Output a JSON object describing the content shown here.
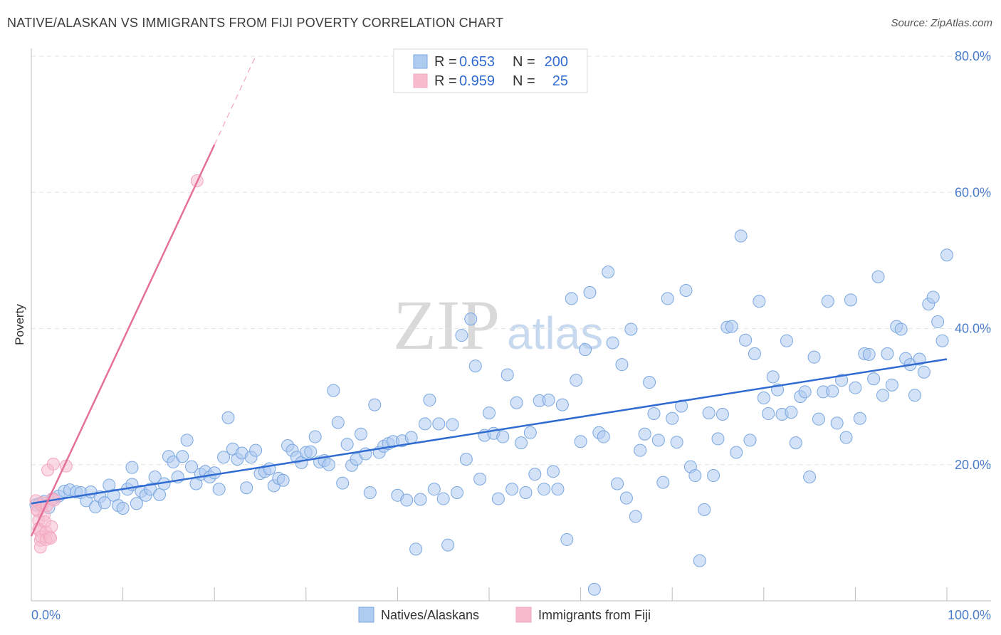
{
  "title": "NATIVE/ALASKAN VS IMMIGRANTS FROM FIJI POVERTY CORRELATION CHART",
  "source": "Source: ZipAtlas.com",
  "watermark": {
    "zip": "ZIP",
    "atlas": "atlas"
  },
  "legend_box": {
    "rows": [
      {
        "r_label": "R =",
        "r_value": "0.653",
        "n_label": "N =",
        "n_value": "200",
        "color": "#aecbf0"
      },
      {
        "r_label": "R =",
        "r_value": "0.959",
        "n_label": "N =",
        "n_value": "25",
        "color": "#f6bccd"
      }
    ]
  },
  "bottom_legend": [
    {
      "label": "Natives/Alaskans",
      "color": "#aecbf0"
    },
    {
      "label": "Immigrants from Fiji",
      "color": "#f6bccd"
    }
  ],
  "chart_data": {
    "type": "scatter",
    "ylabel": "Poverty",
    "xlim": [
      0,
      100
    ],
    "ylim": [
      0,
      80
    ],
    "x_tick_labels": {
      "min": "0.0%",
      "max": "100.0%"
    },
    "y_ticks": [
      {
        "value": 20,
        "label": "20.0%"
      },
      {
        "value": 40,
        "label": "40.0%"
      },
      {
        "value": 60,
        "label": "60.0%"
      },
      {
        "value": 80,
        "label": "80.0%"
      }
    ],
    "grid": "horizontal dashed",
    "legend_position": "top-center",
    "series": [
      {
        "name": "Natives/Alaskans",
        "color": "#7aa7e0",
        "line_color": "#2f6bd1",
        "trend": {
          "x": [
            0,
            100
          ],
          "y": [
            14.3,
            35.5
          ]
        },
        "points": [
          [
            0.5,
            14.1
          ],
          [
            0.9,
            14.3
          ],
          [
            1.4,
            14.6
          ],
          [
            1.9,
            13.7
          ],
          [
            2.4,
            15.0
          ],
          [
            3.0,
            15.4
          ],
          [
            3.6,
            16.1
          ],
          [
            4.2,
            16.3
          ],
          [
            4.9,
            16.0
          ],
          [
            5.4,
            15.9
          ],
          [
            6.0,
            14.7
          ],
          [
            6.5,
            16.0
          ],
          [
            7.0,
            13.8
          ],
          [
            7.5,
            15.3
          ],
          [
            8.0,
            14.4
          ],
          [
            8.5,
            17.0
          ],
          [
            9.0,
            15.5
          ],
          [
            9.5,
            14.0
          ],
          [
            10.0,
            13.6
          ],
          [
            10.5,
            16.4
          ],
          [
            11.0,
            17.1
          ],
          [
            11.0,
            19.6
          ],
          [
            11.5,
            14.3
          ],
          [
            12.0,
            16.1
          ],
          [
            12.5,
            15.5
          ],
          [
            13.0,
            16.4
          ],
          [
            13.5,
            18.2
          ],
          [
            14.0,
            15.6
          ],
          [
            14.5,
            17.2
          ],
          [
            15.0,
            21.2
          ],
          [
            15.5,
            20.4
          ],
          [
            16.0,
            18.2
          ],
          [
            16.5,
            21.2
          ],
          [
            17.0,
            23.6
          ],
          [
            17.5,
            19.7
          ],
          [
            18.0,
            17.2
          ],
          [
            18.5,
            18.6
          ],
          [
            19.0,
            19.0
          ],
          [
            19.5,
            18.2
          ],
          [
            20.0,
            18.8
          ],
          [
            20.5,
            16.4
          ],
          [
            21.0,
            21.1
          ],
          [
            21.5,
            26.9
          ],
          [
            22.0,
            22.3
          ],
          [
            22.5,
            20.8
          ],
          [
            23.0,
            21.7
          ],
          [
            23.5,
            16.6
          ],
          [
            24.0,
            21.1
          ],
          [
            24.5,
            22.1
          ],
          [
            25.0,
            18.7
          ],
          [
            25.5,
            19.0
          ],
          [
            26.0,
            19.4
          ],
          [
            26.5,
            16.9
          ],
          [
            27.0,
            18.0
          ],
          [
            27.5,
            17.7
          ],
          [
            28.0,
            22.8
          ],
          [
            28.5,
            22.1
          ],
          [
            29.0,
            21.1
          ],
          [
            29.5,
            20.3
          ],
          [
            30.0,
            21.8
          ],
          [
            30.5,
            21.9
          ],
          [
            31.0,
            24.1
          ],
          [
            31.5,
            20.4
          ],
          [
            32.0,
            20.6
          ],
          [
            32.5,
            20.0
          ],
          [
            33.0,
            30.9
          ],
          [
            33.5,
            26.2
          ],
          [
            34.0,
            17.3
          ],
          [
            34.5,
            23.0
          ],
          [
            35.0,
            19.9
          ],
          [
            35.5,
            20.8
          ],
          [
            36.0,
            24.5
          ],
          [
            36.5,
            21.6
          ],
          [
            37.0,
            15.9
          ],
          [
            37.5,
            28.8
          ],
          [
            38.0,
            21.8
          ],
          [
            38.5,
            22.7
          ],
          [
            39.0,
            23.1
          ],
          [
            39.5,
            23.4
          ],
          [
            40.0,
            15.5
          ],
          [
            40.5,
            23.5
          ],
          [
            41.0,
            14.8
          ],
          [
            41.5,
            24.0
          ],
          [
            42.0,
            7.6
          ],
          [
            42.5,
            14.9
          ],
          [
            43.0,
            26.0
          ],
          [
            43.5,
            29.5
          ],
          [
            44.0,
            16.4
          ],
          [
            44.5,
            26.0
          ],
          [
            45.0,
            15.0
          ],
          [
            45.5,
            8.2
          ],
          [
            46.0,
            25.9
          ],
          [
            46.5,
            15.9
          ],
          [
            47.0,
            39.0
          ],
          [
            47.5,
            20.8
          ],
          [
            48.0,
            41.4
          ],
          [
            48.5,
            34.5
          ],
          [
            49.0,
            17.9
          ],
          [
            49.5,
            24.3
          ],
          [
            50.0,
            27.6
          ],
          [
            50.5,
            24.6
          ],
          [
            51.0,
            15.0
          ],
          [
            51.5,
            24.1
          ],
          [
            52.0,
            33.2
          ],
          [
            52.5,
            16.4
          ],
          [
            53.0,
            29.1
          ],
          [
            53.5,
            23.2
          ],
          [
            54.0,
            15.9
          ],
          [
            54.5,
            24.7
          ],
          [
            55.0,
            18.6
          ],
          [
            55.5,
            29.4
          ],
          [
            56.0,
            16.4
          ],
          [
            56.5,
            29.5
          ],
          [
            57.0,
            19.0
          ],
          [
            57.5,
            16.4
          ],
          [
            58.0,
            28.8
          ],
          [
            58.5,
            9.0
          ],
          [
            59.0,
            44.4
          ],
          [
            59.5,
            32.4
          ],
          [
            60.0,
            23.4
          ],
          [
            60.5,
            36.9
          ],
          [
            61.0,
            45.3
          ],
          [
            61.5,
            1.7
          ],
          [
            62.0,
            24.7
          ],
          [
            62.5,
            24.1
          ],
          [
            63.0,
            48.3
          ],
          [
            63.5,
            37.9
          ],
          [
            64.0,
            17.2
          ],
          [
            64.5,
            34.7
          ],
          [
            65.0,
            15.1
          ],
          [
            65.5,
            39.9
          ],
          [
            66.0,
            12.4
          ],
          [
            66.5,
            22.1
          ],
          [
            67.0,
            24.5
          ],
          [
            67.5,
            32.1
          ],
          [
            68.0,
            27.5
          ],
          [
            68.5,
            23.6
          ],
          [
            69.0,
            17.4
          ],
          [
            69.5,
            44.4
          ],
          [
            70.0,
            26.8
          ],
          [
            70.5,
            23.3
          ],
          [
            71.0,
            28.6
          ],
          [
            71.5,
            45.6
          ],
          [
            72.0,
            19.7
          ],
          [
            72.5,
            18.4
          ],
          [
            73.0,
            5.9
          ],
          [
            73.5,
            13.4
          ],
          [
            74.0,
            27.6
          ],
          [
            74.5,
            18.4
          ],
          [
            75.0,
            23.8
          ],
          [
            75.5,
            27.4
          ],
          [
            76.0,
            40.2
          ],
          [
            76.5,
            40.3
          ],
          [
            77.0,
            21.8
          ],
          [
            77.5,
            53.6
          ],
          [
            78.0,
            38.3
          ],
          [
            78.5,
            23.6
          ],
          [
            79.0,
            36.3
          ],
          [
            79.5,
            44.0
          ],
          [
            80.0,
            29.8
          ],
          [
            80.5,
            27.5
          ],
          [
            81.0,
            32.9
          ],
          [
            81.5,
            31.0
          ],
          [
            82.0,
            27.4
          ],
          [
            82.5,
            38.2
          ],
          [
            83.0,
            27.7
          ],
          [
            83.5,
            23.2
          ],
          [
            84.0,
            30.0
          ],
          [
            84.5,
            30.7
          ],
          [
            85.0,
            18.2
          ],
          [
            85.5,
            35.8
          ],
          [
            86.0,
            26.7
          ],
          [
            86.5,
            30.7
          ],
          [
            87.0,
            44.0
          ],
          [
            87.5,
            30.8
          ],
          [
            88.0,
            26.1
          ],
          [
            88.5,
            32.4
          ],
          [
            89.0,
            24.0
          ],
          [
            89.5,
            44.2
          ],
          [
            90.0,
            31.3
          ],
          [
            90.5,
            26.8
          ],
          [
            91.0,
            36.3
          ],
          [
            91.5,
            36.2
          ],
          [
            92.0,
            32.6
          ],
          [
            92.5,
            47.6
          ],
          [
            93.0,
            30.2
          ],
          [
            93.5,
            36.3
          ],
          [
            94.0,
            31.7
          ],
          [
            94.5,
            40.3
          ],
          [
            95.0,
            39.9
          ],
          [
            95.5,
            35.6
          ],
          [
            96.0,
            34.7
          ],
          [
            96.5,
            30.2
          ],
          [
            97.0,
            35.5
          ],
          [
            97.5,
            33.6
          ],
          [
            98.0,
            43.6
          ],
          [
            98.5,
            44.6
          ],
          [
            99.0,
            41.0
          ],
          [
            99.5,
            38.2
          ],
          [
            100.0,
            50.8
          ]
        ]
      },
      {
        "name": "Immigrants from Fiji",
        "color": "#f2a7bf",
        "line_color": "#e4709b",
        "trend": {
          "x": [
            0,
            20
          ],
          "y": [
            9.5,
            67.0
          ]
        },
        "trend_dashed": {
          "x": [
            20,
            24.5
          ],
          "y": [
            67.0,
            80.0
          ]
        },
        "points": [
          [
            0.5,
            14.7
          ],
          [
            0.6,
            13.4
          ],
          [
            0.7,
            13.2
          ],
          [
            0.8,
            11.8
          ],
          [
            0.8,
            10.6
          ],
          [
            0.9,
            10.3
          ],
          [
            1.0,
            8.9
          ],
          [
            1.0,
            7.9
          ],
          [
            1.1,
            9.4
          ],
          [
            1.2,
            14.0
          ],
          [
            1.3,
            14.4
          ],
          [
            1.4,
            12.6
          ],
          [
            1.5,
            11.6
          ],
          [
            1.6,
            10.1
          ],
          [
            1.6,
            9.0
          ],
          [
            1.7,
            14.0
          ],
          [
            1.8,
            19.2
          ],
          [
            2.0,
            9.4
          ],
          [
            2.1,
            9.2
          ],
          [
            2.2,
            10.9
          ],
          [
            2.3,
            15.0
          ],
          [
            2.4,
            20.1
          ],
          [
            2.5,
            14.8
          ],
          [
            3.8,
            19.8
          ],
          [
            18.1,
            61.7
          ]
        ]
      }
    ]
  }
}
